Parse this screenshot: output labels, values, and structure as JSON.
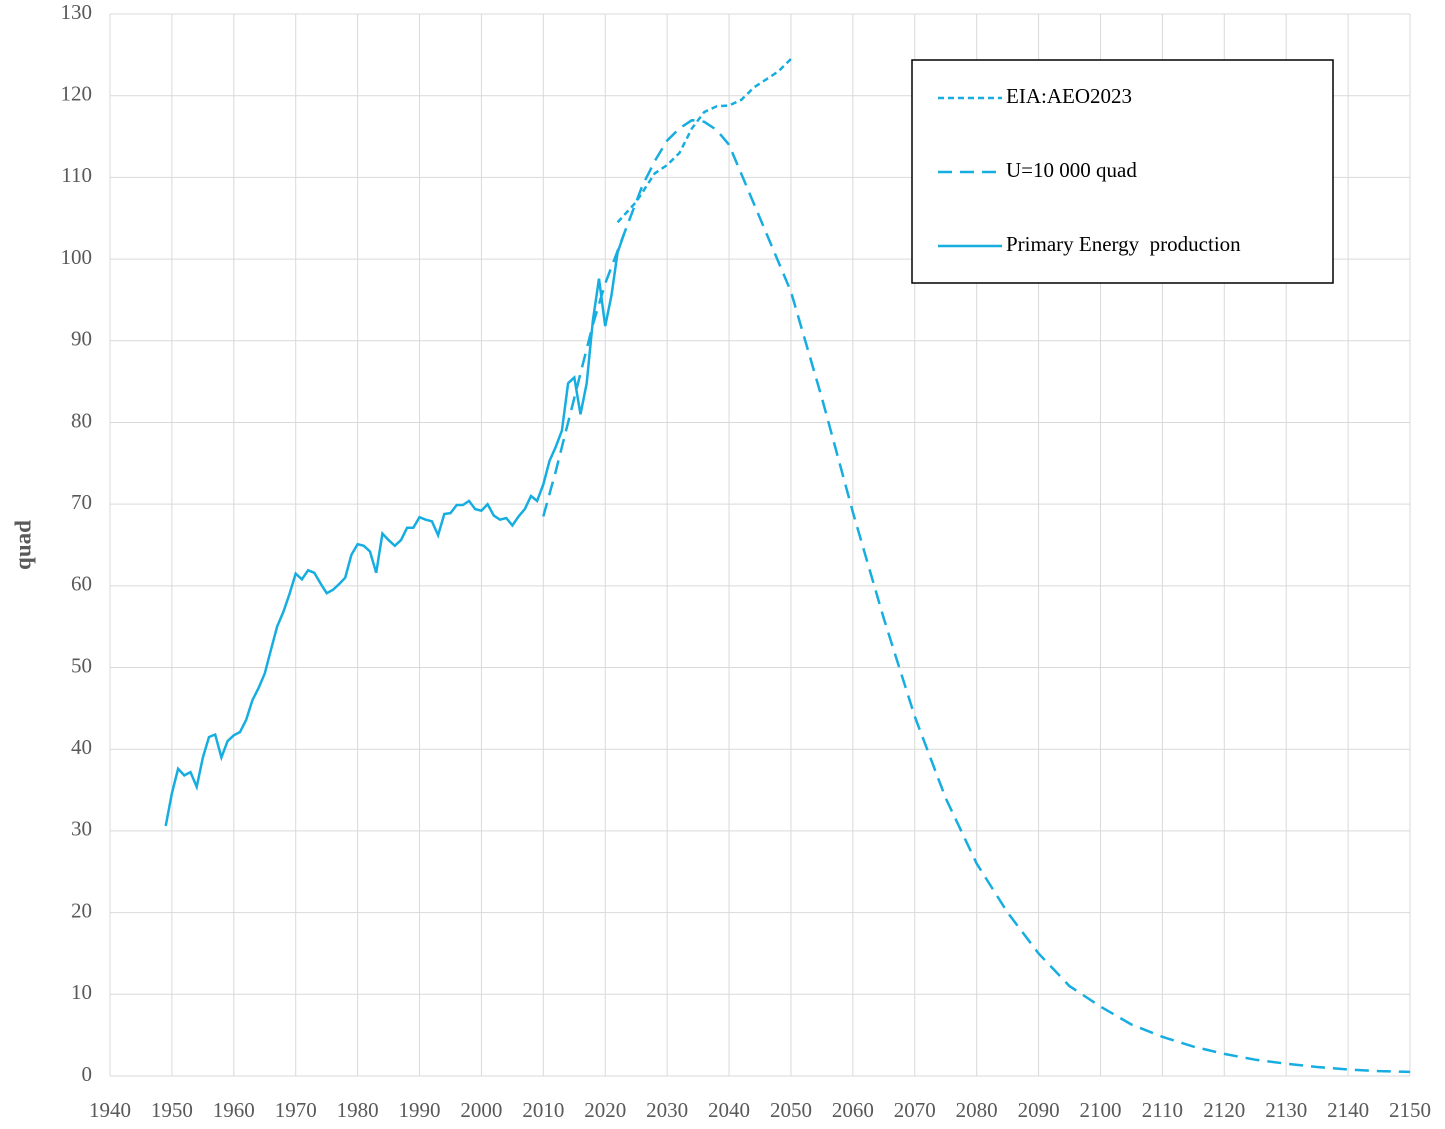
{
  "chart_data": {
    "type": "line",
    "y_label": "quad",
    "grid": true,
    "legend": "upper right",
    "xlim": [
      1940,
      2150
    ],
    "xticks": [
      1940,
      1950,
      1960,
      1970,
      1980,
      1990,
      2000,
      2010,
      2020,
      2030,
      2040,
      2050,
      2060,
      2070,
      2080,
      2090,
      2100,
      2110,
      2120,
      2130,
      2140,
      2150
    ],
    "ylim": [
      0,
      130
    ],
    "yticks": [
      0,
      10,
      20,
      30,
      40,
      50,
      60,
      70,
      80,
      90,
      100,
      110,
      120,
      130
    ],
    "series": [
      {
        "name": "EIA:AEO2023",
        "color": "#16ADE0",
        "dash": "short",
        "x": [
          2022,
          2025,
          2028,
          2030,
          2032,
          2034,
          2036,
          2038,
          2040,
          2042,
          2044,
          2046,
          2048,
          2050
        ],
        "values": [
          104.5,
          107,
          110.5,
          111.5,
          113,
          116,
          118,
          118.7,
          118.8,
          119.5,
          121,
          122,
          123,
          124.5
        ]
      },
      {
        "name": "U=10 000 quad",
        "color": "#16ADE0",
        "dash": "long",
        "x": [
          2010,
          2012,
          2014,
          2016,
          2018,
          2020,
          2022,
          2024,
          2026,
          2028,
          2030,
          2032,
          2034,
          2036,
          2038,
          2040,
          2045,
          2050,
          2055,
          2060,
          2065,
          2070,
          2075,
          2080,
          2085,
          2090,
          2095,
          2100,
          2105,
          2110,
          2115,
          2120,
          2125,
          2130,
          2135,
          2140,
          2145,
          2150
        ],
        "values": [
          68.5,
          74,
          80,
          86,
          92,
          97,
          101,
          105,
          109,
          112,
          114.5,
          116,
          117,
          116.8,
          115.8,
          114,
          105,
          96,
          83,
          69,
          56,
          44,
          34,
          26,
          20,
          15,
          11,
          8.5,
          6.3,
          4.8,
          3.6,
          2.7,
          2,
          1.5,
          1.1,
          0.8,
          0.6,
          0.5
        ]
      },
      {
        "name": "Primary Energy  production",
        "color": "#16ADE0",
        "dash": "solid",
        "x": [
          1949,
          1950,
          1951,
          1952,
          1953,
          1954,
          1955,
          1956,
          1957,
          1958,
          1959,
          1960,
          1961,
          1962,
          1963,
          1964,
          1965,
          1966,
          1967,
          1968,
          1969,
          1970,
          1971,
          1972,
          1973,
          1974,
          1975,
          1976,
          1977,
          1978,
          1979,
          1980,
          1981,
          1982,
          1983,
          1984,
          1985,
          1986,
          1987,
          1988,
          1989,
          1990,
          1991,
          1992,
          1993,
          1994,
          1995,
          1996,
          1997,
          1998,
          1999,
          2000,
          2001,
          2002,
          2003,
          2004,
          2005,
          2006,
          2007,
          2008,
          2009,
          2010,
          2011,
          2012,
          2013,
          2014,
          2015,
          2016,
          2017,
          2018,
          2019,
          2020,
          2021,
          2022,
          2023
        ],
        "values": [
          30.6,
          34.6,
          37.6,
          36.8,
          37.2,
          35.4,
          39,
          41.5,
          41.8,
          39,
          41,
          41.7,
          42.1,
          43.6,
          46,
          47.5,
          49.3,
          52.2,
          55,
          56.8,
          59,
          61.5,
          60.8,
          61.9,
          61.6,
          60.3,
          59.1,
          59.5,
          60.2,
          61,
          63.8,
          65.1,
          64.9,
          64.2,
          61.6,
          66.4,
          65.6,
          64.9,
          65.6,
          67.1,
          67.1,
          68.4,
          68.1,
          67.9,
          66.2,
          68.8,
          68.9,
          69.9,
          69.9,
          70.4,
          69.4,
          69.2,
          70,
          68.6,
          68.1,
          68.3,
          67.4,
          68.5,
          69.4,
          71,
          70.4,
          72.4,
          75.3,
          77,
          79,
          84.8,
          85.5,
          81,
          84.8,
          92.5,
          97.6,
          91.8,
          95.5,
          100.8,
          103
        ]
      }
    ]
  }
}
